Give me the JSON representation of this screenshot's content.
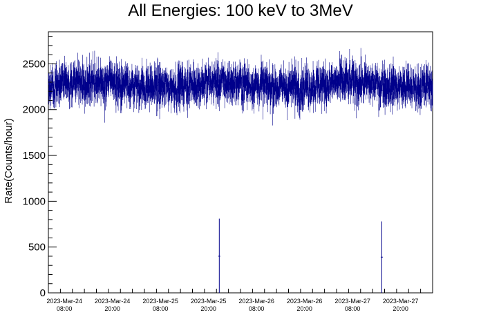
{
  "chart_data": {
    "type": "line",
    "title": "All Energies:  100 keV to 3MeV",
    "xlabel": "",
    "ylabel": "Rate(Counts/hour)",
    "ylim": [
      0,
      2850
    ],
    "y_ticks": [
      0,
      500,
      1000,
      1500,
      2000,
      2500
    ],
    "x_range_hours": [
      -4,
      92
    ],
    "x_ticks": [
      {
        "hour": 0,
        "date": "2023-Mar-24",
        "time": "08:00"
      },
      {
        "hour": 12,
        "date": "2023-Mar-24",
        "time": "20:00"
      },
      {
        "hour": 24,
        "date": "2023-Mar-25",
        "time": "08:00"
      },
      {
        "hour": 36,
        "date": "2023-Mar-25",
        "time": "20:00"
      },
      {
        "hour": 48,
        "date": "2023-Mar-26",
        "time": "08:00"
      },
      {
        "hour": 60,
        "date": "2023-Mar-26",
        "time": "20:00"
      },
      {
        "hour": 72,
        "date": "2023-Mar-27",
        "time": "08:00"
      },
      {
        "hour": 84,
        "date": "2023-Mar-27",
        "time": "20:00"
      }
    ],
    "series": [
      {
        "color": "#00008b",
        "style": "step histogram with error bars",
        "baseline_mean": 2270,
        "noise_range": [
          1850,
          2720
        ],
        "dips": [
          {
            "hour": 38.7,
            "value": 400,
            "range": [
              0,
              810
            ]
          },
          {
            "hour": 79.3,
            "value": 390,
            "range": [
              0,
              780
            ]
          }
        ]
      }
    ],
    "grid": false,
    "legend": "none"
  }
}
